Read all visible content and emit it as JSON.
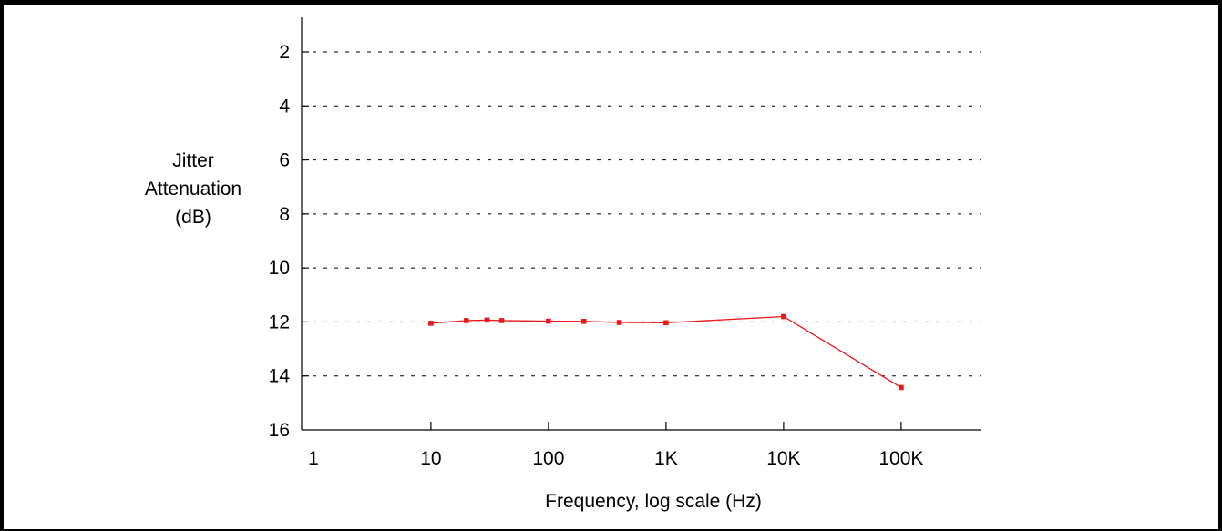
{
  "chart_data": {
    "type": "line",
    "xlabel": "Frequency, log scale (Hz)",
    "ylabel_lines": [
      "Jitter",
      "Attenuation",
      "(dB)"
    ],
    "x_scale": "log",
    "xlim": [
      1,
      1000000
    ],
    "x_ticks": [
      1,
      10,
      100,
      1000,
      10000,
      100000
    ],
    "x_tick_labels": [
      "1",
      "10",
      "100",
      "1K",
      "10K",
      "100K"
    ],
    "ylim": [
      1,
      16
    ],
    "y_inverted": true,
    "y_ticks": [
      2,
      4,
      6,
      8,
      10,
      12,
      14,
      16
    ],
    "y_tick_labels": [
      "2",
      "4",
      "6",
      "8",
      "10",
      "12",
      "14",
      "16"
    ],
    "grid": "dashed horizontal",
    "series": [
      {
        "color": "#e8181c",
        "x": [
          10,
          20,
          30,
          40,
          100,
          200,
          400,
          1000,
          10000,
          100000
        ],
        "y": [
          12.05,
          11.95,
          11.93,
          11.95,
          11.97,
          11.98,
          12.02,
          12.03,
          11.8,
          14.43
        ]
      }
    ]
  }
}
